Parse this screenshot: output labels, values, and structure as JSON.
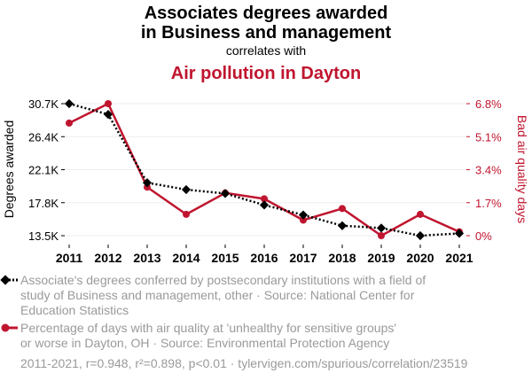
{
  "title": {
    "line1": "Associates degrees awarded",
    "line2": "in Business and management",
    "connector": "correlates with",
    "line3": "Air pollution in Dayton"
  },
  "colors": {
    "series1": "#000000",
    "series2": "#c0152f",
    "muted": "#9a9a9a",
    "grid": "#eeeeee"
  },
  "legend": {
    "series1_lines": [
      "Associate's degrees conferred by postsecondary institutions with a field of",
      "study of Business and management, other · Source: National Center for",
      "Education Statistics"
    ],
    "series2_lines": [
      "Percentage of days with air quality at 'unhealthy for sensitive groups'",
      "or worse in Dayton, OH · Source: Environmental Protection Agency"
    ]
  },
  "footer": "2011-2021, r=0.948, r²=0.898, p<0.01 · tylervigen.com/spurious/correlation/23519",
  "chart_data": {
    "type": "line",
    "title": "Associates degrees awarded in Business and management correlates with Air pollution in Dayton",
    "x": [
      "2011",
      "2012",
      "2013",
      "2014",
      "2015",
      "2016",
      "2017",
      "2018",
      "2019",
      "2020",
      "2021"
    ],
    "series": [
      {
        "name": "Associate's degrees conferred (Business and management, other)",
        "axis": "left",
        "style": "dotted",
        "marker": "diamond",
        "values": [
          30700,
          29300,
          20400,
          19500,
          19000,
          17500,
          16200,
          14800,
          14500,
          13500,
          13800
        ]
      },
      {
        "name": "Bad air quality days (%) in Dayton, OH",
        "axis": "right",
        "style": "solid",
        "marker": "circle",
        "values": [
          5.8,
          6.8,
          2.5,
          1.1,
          2.2,
          1.9,
          0.8,
          1.4,
          0.0,
          1.1,
          0.2
        ]
      }
    ],
    "yleft": {
      "label": "Degrees awarded",
      "range": [
        13000,
        31000
      ],
      "ticks": [
        13500,
        17800,
        22100,
        26400,
        30700
      ],
      "tick_labels": [
        "13.5K",
        "17.8K",
        "22.1K",
        "26.4K",
        "30.7K"
      ]
    },
    "yright": {
      "label": "Bad air quality days",
      "range": [
        -0.2,
        6.9
      ],
      "ticks": [
        0,
        1.7,
        3.4,
        5.1,
        6.8
      ],
      "tick_labels": [
        "0%",
        "1.7%",
        "3.4%",
        "5.1%",
        "6.8%"
      ]
    }
  }
}
